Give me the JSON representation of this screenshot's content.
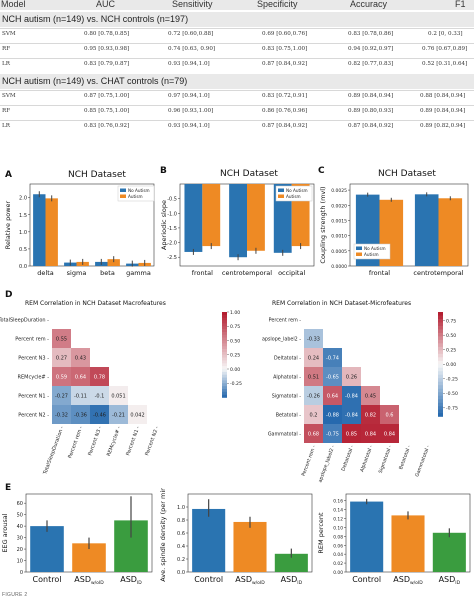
{
  "table": {
    "headers": [
      "Model",
      "AUC",
      "Sensitivity",
      "Specificity",
      "Accuracy",
      "F1"
    ],
    "groups": [
      {
        "title": "NCH autism (n=149) vs. NCH controls (n=197)",
        "rows": [
          {
            "model": "SVM",
            "auc": "0.80 [0.78,0.85]",
            "sensitivity": "0.72 [0.60,0.88]",
            "specificity": "0.69 [0.60,0.76]",
            "accuracy": "0.83 [0.78,0.86]",
            "f1": "0.2 [0, 0.33]"
          },
          {
            "model": "RF",
            "auc": "0.95 [0.93,0.98]",
            "sensitivity": "0.74 [0.63, 0.90]",
            "specificity": "0.83 [0.75,1.00]",
            "accuracy": "0.94 [0.92,0.97]",
            "f1": "0.76 [0.67,0.89]"
          },
          {
            "model": "LR",
            "auc": "0.83 [0.79,0.87]",
            "sensitivity": "0.93 [0.94,1.0]",
            "specificity": "0.87 [0.84,0.92]",
            "accuracy": "0.82 [0.77,0.83]",
            "f1": "0.52 [0.31,0.64]"
          }
        ]
      },
      {
        "title": "NCH autism (n=149) vs. CHAT controls (n=79)",
        "rows": [
          {
            "model": "SVM",
            "auc": "0.87 [0.75,1.00]",
            "sensitivity": "0.97 [0.94,1.0]",
            "specificity": "0.83 [0.72,0.91]",
            "accuracy": "0.89 [0.84,0.94]",
            "f1": "0.88 [0.84,0.94]"
          },
          {
            "model": "RF",
            "auc": "0.85 [0.75,1.00]",
            "sensitivity": "0.96 [0.93,1.00]",
            "specificity": "0.86 [0.76,0.96]",
            "accuracy": "0.89 [0.80,0.93]",
            "f1": "0.89 [0.84,0.94]"
          },
          {
            "model": "LR",
            "auc": "0.83 [0.76,0.92]",
            "sensitivity": "0.93 [0.94,1.0]",
            "specificity": "0.87 [0.84,0.92]",
            "accuracy": "0.87 [0.84,0.92]",
            "f1": "0.89 [0.82,0.94]"
          }
        ]
      }
    ]
  },
  "panels": {
    "A": {
      "label": "A",
      "title": "NCH Dataset"
    },
    "B": {
      "label": "B",
      "title": "NCH Dataset"
    },
    "C": {
      "label": "C",
      "title": "NCH Dataset"
    },
    "D": {
      "label": "D",
      "left_title": "REM Correlation in  NCH Dataset Macrofeatures",
      "right_title": "REM Correlation in  NCH Dataset-Microfeatures"
    },
    "E": {
      "label": "E"
    }
  },
  "colors": {
    "blue": "#2a74b1",
    "orange": "#ee8a24",
    "green": "#3a9c3f",
    "header_gray": "#e9e9e9"
  },
  "figure_caption": "FIGURE 2",
  "chart_data": [
    {
      "id": "A",
      "type": "bar",
      "title": "NCH Dataset",
      "categories": [
        "delta",
        "sigma",
        "beta",
        "gamma"
      ],
      "ylabel": "Relative power",
      "ylim": [
        0,
        2.4
      ],
      "yticks": [
        "0.0",
        "0.5",
        "1.0",
        "1.5",
        "2.0"
      ],
      "ytick_values": [
        0,
        0.5,
        1.0,
        1.5,
        2.0
      ],
      "legend": "top-right",
      "series": [
        {
          "name": "No Autism",
          "color": "#2a74b1",
          "values": [
            2.1,
            0.1,
            0.12,
            0.07
          ]
        },
        {
          "name": "Autism",
          "color": "#ee8a24",
          "values": [
            1.98,
            0.12,
            0.2,
            0.09
          ]
        }
      ]
    },
    {
      "id": "B",
      "type": "bar",
      "title": "NCH Dataset",
      "categories": [
        "frontal",
        "centrotemporal",
        "occipital"
      ],
      "ylabel": "Aperiodic slope",
      "ylim": [
        -2.8,
        0
      ],
      "yticks": [
        "-0.5",
        "-1.0",
        "-1.5",
        "-2.0",
        "-2.5"
      ],
      "ytick_values": [
        -0.5,
        -1.0,
        -1.5,
        -2.0,
        -2.5
      ],
      "legend": "top-right",
      "series": [
        {
          "name": "No Autism",
          "color": "#2a74b1",
          "values": [
            -2.32,
            -2.5,
            -2.35
          ]
        },
        {
          "name": "Autism",
          "color": "#ee8a24",
          "values": [
            -2.12,
            -2.28,
            -2.12
          ]
        }
      ]
    },
    {
      "id": "C",
      "type": "bar",
      "title": "NCH Dataset",
      "categories": [
        "frontal",
        "centrotemporal"
      ],
      "ylabel": "Coupling strength (mvl)",
      "ylim": [
        0,
        0.0027
      ],
      "yticks": [
        "0.0000",
        "0.0005",
        "0.0010",
        "0.0015",
        "0.0020",
        "0.0025"
      ],
      "ytick_values": [
        0,
        0.0005,
        0.001,
        0.0015,
        0.002,
        0.0025
      ],
      "legend": "bottom-left",
      "series": [
        {
          "name": "No Autism",
          "color": "#2a74b1",
          "values": [
            0.00235,
            0.00236
          ]
        },
        {
          "name": "Autism",
          "color": "#ee8a24",
          "values": [
            0.00218,
            0.00223
          ]
        }
      ]
    },
    {
      "id": "D-left",
      "type": "heatmap",
      "title": "REM Correlation in  NCH Dataset Macrofeatures",
      "labels": [
        "TotalSleepDuration",
        "Percent rem",
        "Percent N3",
        "REMcycle#",
        "Percent N1",
        "Percent N2"
      ],
      "cells": [
        {
          "row": 1,
          "col": 0,
          "value": 0.55,
          "text": "0.55"
        },
        {
          "row": 2,
          "col": 0,
          "value": 0.27,
          "text": "0.27"
        },
        {
          "row": 2,
          "col": 1,
          "value": 0.43,
          "text": "0.43"
        },
        {
          "row": 3,
          "col": 0,
          "value": 0.59,
          "text": "0.59"
        },
        {
          "row": 3,
          "col": 1,
          "value": 0.64,
          "text": "0.64"
        },
        {
          "row": 3,
          "col": 2,
          "value": 0.78,
          "text": "0.78"
        },
        {
          "row": 4,
          "col": 0,
          "value": -0.27,
          "text": "-0.27"
        },
        {
          "row": 4,
          "col": 1,
          "value": -0.11,
          "text": "-0.11"
        },
        {
          "row": 4,
          "col": 2,
          "value": -0.1,
          "text": "-0.1"
        },
        {
          "row": 4,
          "col": 3,
          "value": 0.051,
          "text": "0.051"
        },
        {
          "row": 5,
          "col": 0,
          "value": -0.32,
          "text": "-0.32"
        },
        {
          "row": 5,
          "col": 1,
          "value": -0.36,
          "text": "-0.36"
        },
        {
          "row": 5,
          "col": 2,
          "value": -0.46,
          "text": "-0.46"
        },
        {
          "row": 5,
          "col": 3,
          "value": -0.21,
          "text": "-0.21"
        },
        {
          "row": 5,
          "col": 4,
          "value": 0.042,
          "text": "0.042"
        }
      ],
      "colorbar": {
        "ticks": [
          "1.00",
          "0.75",
          "0.50",
          "0.25",
          "0.00",
          "-0.25"
        ],
        "range": [
          -0.5,
          1.0
        ]
      }
    },
    {
      "id": "D-right",
      "type": "heatmap",
      "title": "REM Correlation in  NCH Dataset-Microfeatures",
      "labels": [
        "Percent rem",
        "apslope_label2",
        "Deltatotal",
        "Alphatotal",
        "Sigmatotal",
        "Betatotal",
        "Gammatotal"
      ],
      "cells": [
        {
          "row": 1,
          "col": 0,
          "value": -0.33,
          "text": "-0.33"
        },
        {
          "row": 2,
          "col": 0,
          "value": 0.24,
          "text": "0.24"
        },
        {
          "row": 2,
          "col": 1,
          "value": -0.74,
          "text": "-0.74"
        },
        {
          "row": 3,
          "col": 0,
          "value": 0.51,
          "text": "0.51"
        },
        {
          "row": 3,
          "col": 1,
          "value": -0.65,
          "text": "-0.65"
        },
        {
          "row": 3,
          "col": 2,
          "value": 0.26,
          "text": "0.26"
        },
        {
          "row": 4,
          "col": 0,
          "value": -0.26,
          "text": "-0.26"
        },
        {
          "row": 4,
          "col": 1,
          "value": 0.64,
          "text": "0.64"
        },
        {
          "row": 4,
          "col": 2,
          "value": -0.84,
          "text": "-0.84"
        },
        {
          "row": 4,
          "col": 3,
          "value": 0.45,
          "text": "0.45"
        },
        {
          "row": 5,
          "col": 0,
          "value": 0.2,
          "text": "0.2"
        },
        {
          "row": 5,
          "col": 1,
          "value": -0.88,
          "text": "-0.88"
        },
        {
          "row": 5,
          "col": 2,
          "value": -0.84,
          "text": "-0.84"
        },
        {
          "row": 5,
          "col": 3,
          "value": 0.82,
          "text": "0.82"
        },
        {
          "row": 5,
          "col": 4,
          "value": 0.6,
          "text": "0.6"
        },
        {
          "row": 6,
          "col": 0,
          "value": 0.68,
          "text": "0.68"
        },
        {
          "row": 6,
          "col": 1,
          "value": -0.75,
          "text": "-0.75"
        },
        {
          "row": 6,
          "col": 2,
          "value": 0.85,
          "text": "0.85"
        },
        {
          "row": 6,
          "col": 3,
          "value": 0.84,
          "text": "0.84"
        },
        {
          "row": 6,
          "col": 4,
          "value": 0.84,
          "text": "0.84"
        }
      ],
      "colorbar": {
        "ticks": [
          "0.75",
          "0.50",
          "0.25",
          "0.00",
          "-0.25",
          "-0.50",
          "-0.75"
        ],
        "range": [
          -0.9,
          0.9
        ]
      }
    },
    {
      "id": "E1",
      "type": "bar",
      "categories": [
        "Control",
        "ASD",
        "ASD"
      ],
      "category_subscripts": [
        "",
        "w/oID",
        "ID"
      ],
      "ylabel": "EEG arousal",
      "ylim": [
        0,
        68
      ],
      "yticks": [
        "0",
        "10",
        "20",
        "30",
        "40",
        "50",
        "60"
      ],
      "ytick_values": [
        0,
        10,
        20,
        30,
        40,
        50,
        60
      ],
      "series": [
        {
          "values": [
            40,
            25,
            45
          ],
          "colors": [
            "#2a74b1",
            "#ee8a24",
            "#3a9c3f"
          ],
          "err_low": [
            35,
            20,
            30
          ],
          "err_high": [
            45,
            30,
            66
          ]
        }
      ]
    },
    {
      "id": "E2",
      "type": "bar",
      "categories": [
        "Control",
        "ASD",
        "ASD"
      ],
      "category_subscripts": [
        "",
        "w/oID",
        "ID"
      ],
      "ylabel": "Ave. spindle density (per min)",
      "ylim": [
        0,
        1.2
      ],
      "yticks": [
        "0.0",
        "0.2",
        "0.4",
        "0.6",
        "0.8",
        "1.0"
      ],
      "ytick_values": [
        0,
        0.2,
        0.4,
        0.6,
        0.8,
        1.0
      ],
      "series": [
        {
          "values": [
            0.97,
            0.77,
            0.28
          ],
          "colors": [
            "#2a74b1",
            "#ee8a24",
            "#3a9c3f"
          ],
          "err_low": [
            0.85,
            0.68,
            0.22
          ],
          "err_high": [
            1.12,
            0.85,
            0.36
          ]
        }
      ]
    },
    {
      "id": "E3",
      "type": "bar",
      "categories": [
        "Control",
        "ASD",
        "ASD"
      ],
      "category_subscripts": [
        "",
        "w/oID",
        "ID"
      ],
      "ylabel": "REM percent",
      "ylim": [
        0,
        0.175
      ],
      "yticks": [
        "0.00",
        "0.02",
        "0.04",
        "0.06",
        "0.08",
        "0.10",
        "0.12",
        "0.14",
        "0.16"
      ],
      "ytick_values": [
        0,
        0.02,
        0.04,
        0.06,
        0.08,
        0.1,
        0.12,
        0.14,
        0.16
      ],
      "series": [
        {
          "values": [
            0.158,
            0.127,
            0.088
          ],
          "colors": [
            "#2a74b1",
            "#ee8a24",
            "#3a9c3f"
          ],
          "err_low": [
            0.152,
            0.118,
            0.078
          ],
          "err_high": [
            0.164,
            0.136,
            0.098
          ]
        }
      ]
    }
  ]
}
